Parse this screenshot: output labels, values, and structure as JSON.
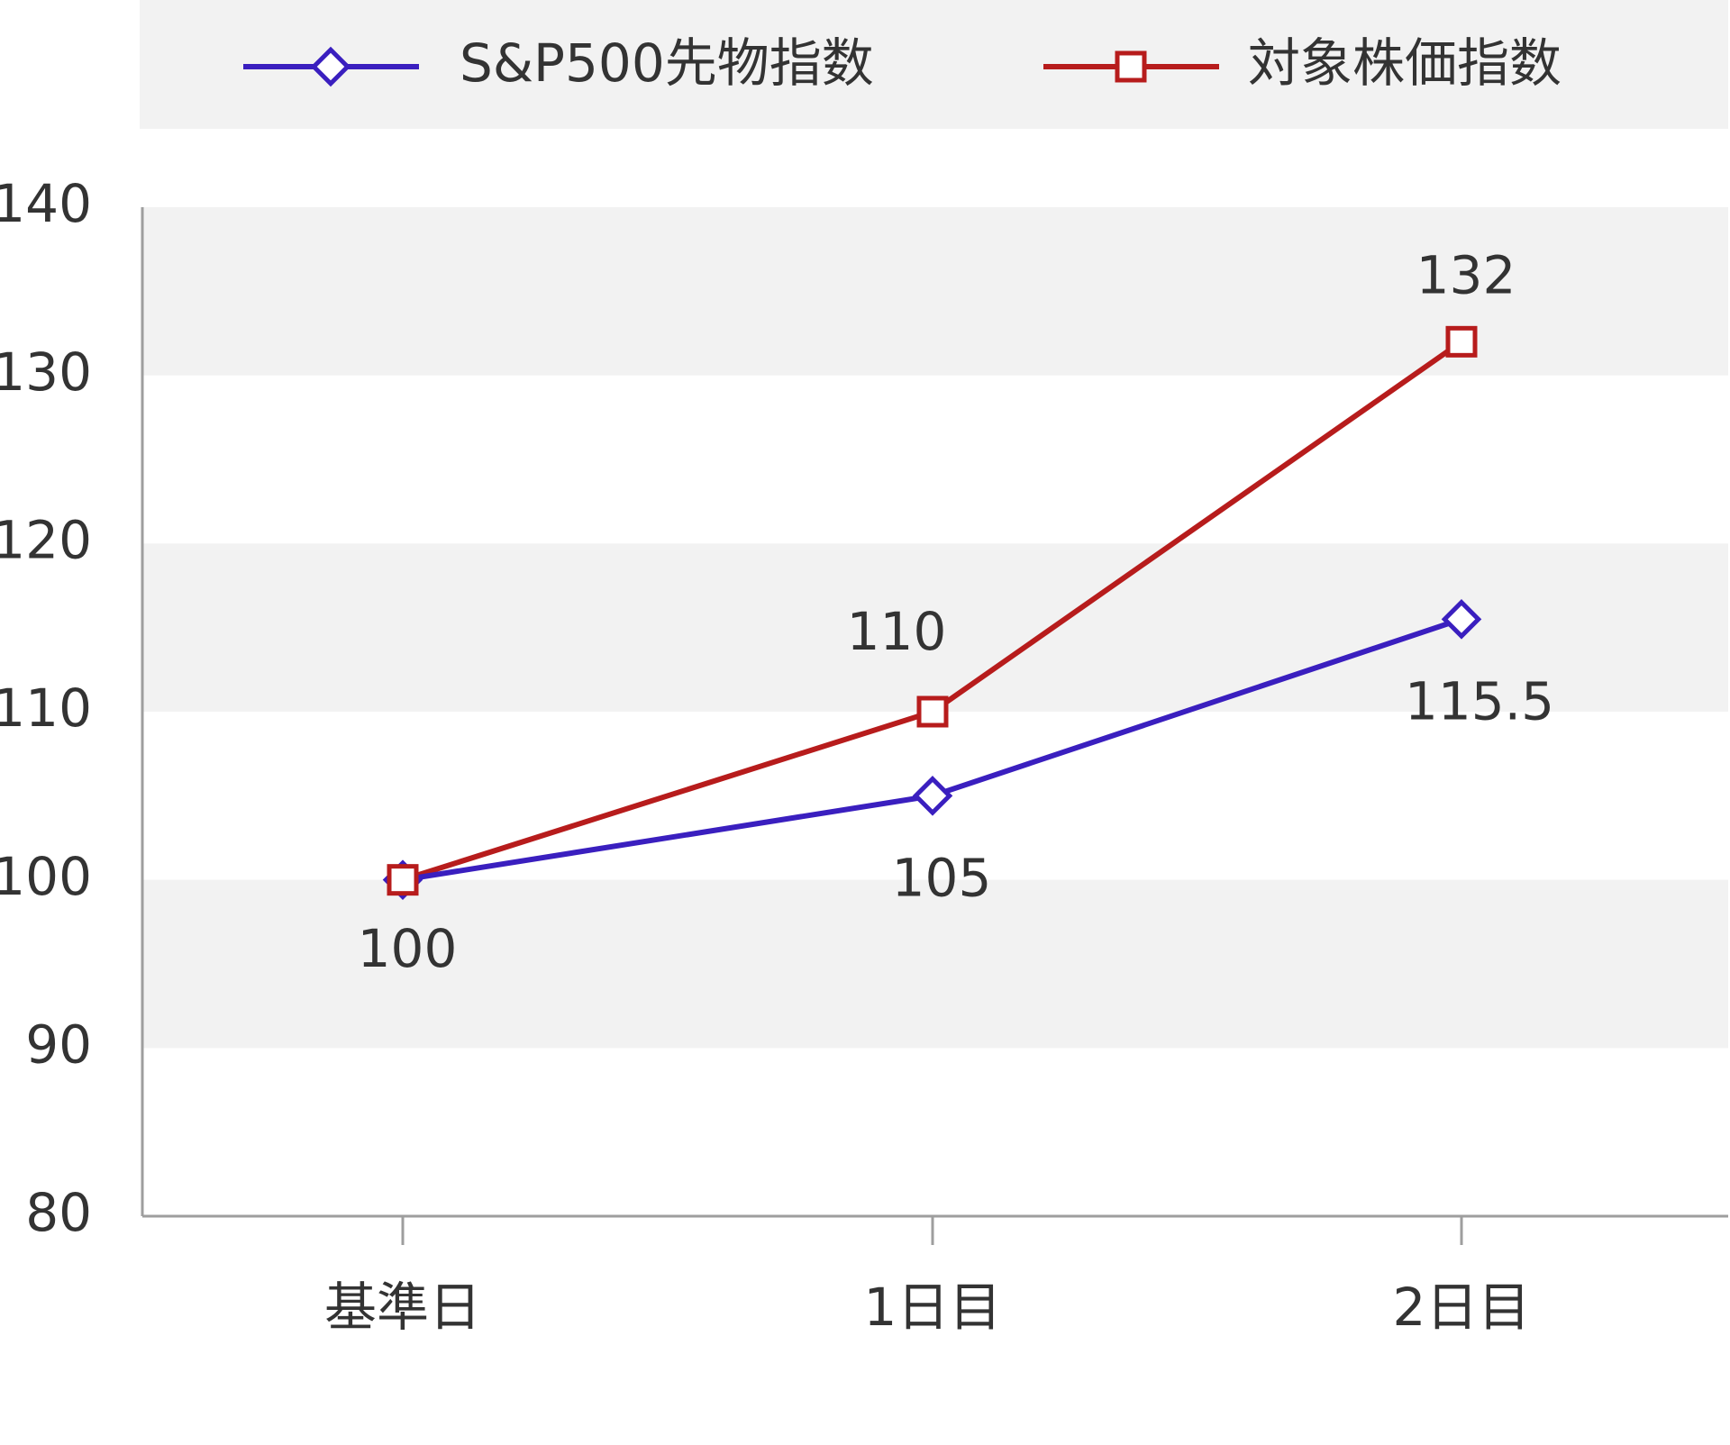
{
  "chart_data": {
    "type": "line",
    "categories": [
      "基準日",
      "1日目",
      "2日目"
    ],
    "series": [
      {
        "name": "S&P500先物指数",
        "values": [
          100,
          105,
          115.5
        ],
        "labels": [
          "",
          "105",
          "115.5"
        ],
        "color": "#3a1fbf",
        "marker": "diamond-open"
      },
      {
        "name": "対象株価指数",
        "values": [
          100,
          110,
          132
        ],
        "labels": [
          "100",
          "110",
          "132"
        ],
        "color": "#b71c1c",
        "marker": "square-open"
      }
    ],
    "yticks": [
      "140",
      "130",
      "120",
      "110",
      "100",
      "90",
      "80"
    ],
    "ylim": [
      80,
      140
    ],
    "title": "",
    "xlabel": "",
    "ylabel": "",
    "legend_position": "top",
    "grid": "alternating horizontal bands",
    "band_color": "#f2f2f2",
    "axis_color": "#9e9e9e",
    "text_color": "#333333"
  }
}
